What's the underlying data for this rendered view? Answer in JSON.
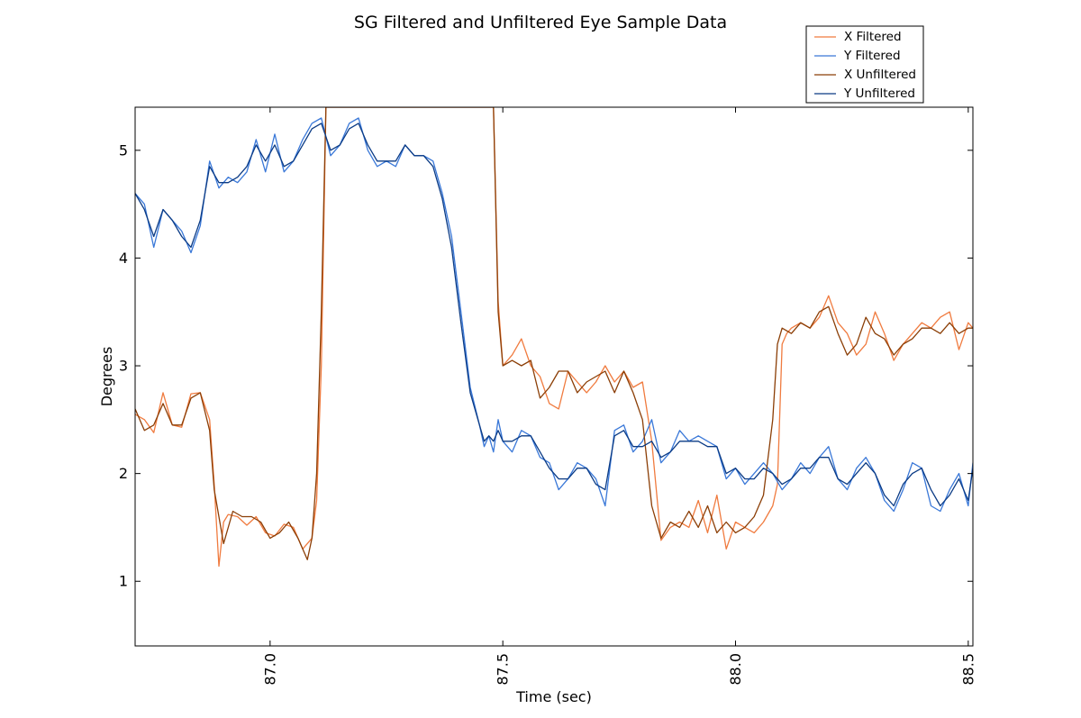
{
  "chart_data": {
    "type": "line",
    "title": "SG Filtered and Unfiltered Eye Sample Data",
    "xlabel": "Time (sec)",
    "ylabel": "Degrees",
    "xlim": [
      86.71,
      88.51
    ],
    "ylim": [
      0.4,
      5.4
    ],
    "xticks": [
      87.0,
      87.5,
      88.0,
      88.5
    ],
    "xtick_labels": [
      "87.0",
      "87.5",
      "88.0",
      "88.5"
    ],
    "yticks": [
      1,
      2,
      3,
      4,
      5
    ],
    "ytick_labels": [
      "1",
      "2",
      "3",
      "4",
      "5"
    ],
    "grid": false,
    "legend_placement": "top-right",
    "series": [
      {
        "name": "X Filtered",
        "color": "#f07b3f",
        "x": [
          86.71,
          86.73,
          86.75,
          86.77,
          86.79,
          86.81,
          86.83,
          86.85,
          86.87,
          86.88,
          86.89,
          86.9,
          86.91,
          86.93,
          86.95,
          86.97,
          86.99,
          87.01,
          87.03,
          87.05,
          87.07,
          87.09,
          87.1,
          87.11,
          87.12,
          87.13,
          87.14,
          87.44,
          87.46,
          87.47,
          87.48,
          87.49,
          87.5,
          87.52,
          87.54,
          87.56,
          87.58,
          87.6,
          87.62,
          87.64,
          87.66,
          87.68,
          87.7,
          87.72,
          87.74,
          87.76,
          87.78,
          87.8,
          87.82,
          87.84,
          87.86,
          87.88,
          87.9,
          87.92,
          87.94,
          87.96,
          87.98,
          88.0,
          88.02,
          88.04,
          88.06,
          88.08,
          88.09,
          88.1,
          88.11,
          88.12,
          88.14,
          88.16,
          88.18,
          88.2,
          88.22,
          88.24,
          88.26,
          88.28,
          88.3,
          88.32,
          88.34,
          88.36,
          88.38,
          88.4,
          88.42,
          88.44,
          88.46,
          88.48,
          88.5,
          88.51
        ],
        "y": [
          2.55,
          2.5,
          2.38,
          2.75,
          2.45,
          2.43,
          2.74,
          2.75,
          2.5,
          1.9,
          1.14,
          1.55,
          1.62,
          1.6,
          1.52,
          1.6,
          1.45,
          1.42,
          1.53,
          1.5,
          1.3,
          1.4,
          1.75,
          3.0,
          5.4,
          5.4,
          5.4,
          5.4,
          5.4,
          5.4,
          5.4,
          3.6,
          3.0,
          3.1,
          3.25,
          3.0,
          2.9,
          2.65,
          2.6,
          2.95,
          2.85,
          2.75,
          2.85,
          3.0,
          2.85,
          2.95,
          2.8,
          2.85,
          2.3,
          1.38,
          1.5,
          1.55,
          1.5,
          1.75,
          1.45,
          1.8,
          1.3,
          1.55,
          1.5,
          1.45,
          1.55,
          1.7,
          1.9,
          3.2,
          3.3,
          3.35,
          3.4,
          3.35,
          3.45,
          3.65,
          3.4,
          3.3,
          3.1,
          3.2,
          3.5,
          3.3,
          3.05,
          3.2,
          3.3,
          3.4,
          3.35,
          3.45,
          3.5,
          3.15,
          3.4,
          3.35
        ]
      },
      {
        "name": "Y Filtered",
        "color": "#3a78d8",
        "x": [
          86.71,
          86.73,
          86.75,
          86.77,
          86.79,
          86.81,
          86.83,
          86.85,
          86.87,
          86.89,
          86.91,
          86.93,
          86.95,
          86.97,
          86.99,
          87.01,
          87.03,
          87.05,
          87.07,
          87.09,
          87.11,
          87.13,
          87.15,
          87.17,
          87.19,
          87.21,
          87.23,
          87.25,
          87.27,
          87.29,
          87.31,
          87.33,
          87.35,
          87.37,
          87.39,
          87.41,
          87.43,
          87.45,
          87.46,
          87.47,
          87.48,
          87.49,
          87.5,
          87.52,
          87.54,
          87.56,
          87.58,
          87.6,
          87.62,
          87.64,
          87.66,
          87.68,
          87.7,
          87.72,
          87.74,
          87.76,
          87.78,
          87.8,
          87.82,
          87.84,
          87.86,
          87.88,
          87.9,
          87.92,
          87.94,
          87.96,
          87.98,
          88.0,
          88.02,
          88.04,
          88.06,
          88.08,
          88.1,
          88.12,
          88.14,
          88.16,
          88.18,
          88.2,
          88.22,
          88.24,
          88.26,
          88.28,
          88.3,
          88.32,
          88.34,
          88.36,
          88.38,
          88.4,
          88.42,
          88.44,
          88.46,
          88.48,
          88.5,
          88.51
        ],
        "y": [
          4.6,
          4.5,
          4.1,
          4.45,
          4.35,
          4.25,
          4.05,
          4.3,
          4.9,
          4.65,
          4.75,
          4.7,
          4.8,
          5.1,
          4.8,
          5.15,
          4.8,
          4.9,
          5.1,
          5.25,
          5.3,
          4.95,
          5.05,
          5.25,
          5.3,
          5.0,
          4.85,
          4.9,
          4.85,
          5.05,
          4.95,
          4.95,
          4.9,
          4.6,
          4.2,
          3.5,
          2.8,
          2.45,
          2.25,
          2.35,
          2.2,
          2.5,
          2.3,
          2.2,
          2.4,
          2.35,
          2.15,
          2.1,
          1.85,
          1.95,
          2.1,
          2.05,
          1.95,
          1.7,
          2.4,
          2.45,
          2.2,
          2.3,
          2.5,
          2.1,
          2.2,
          2.4,
          2.3,
          2.35,
          2.3,
          2.25,
          1.95,
          2.05,
          1.9,
          2.0,
          2.1,
          2.0,
          1.85,
          1.95,
          2.1,
          2.0,
          2.15,
          2.25,
          1.95,
          1.85,
          2.05,
          2.15,
          2.0,
          1.75,
          1.65,
          1.85,
          2.1,
          2.05,
          1.7,
          1.65,
          1.85,
          2.0,
          1.7,
          2.1
        ]
      },
      {
        "name": "X Unfiltered",
        "color": "#8b3e06",
        "x": [
          86.71,
          86.73,
          86.75,
          86.77,
          86.79,
          86.81,
          86.83,
          86.85,
          86.87,
          86.88,
          86.9,
          86.92,
          86.94,
          86.96,
          86.98,
          87.0,
          87.02,
          87.04,
          87.06,
          87.08,
          87.09,
          87.1,
          87.11,
          87.12,
          87.13,
          87.14,
          87.44,
          87.46,
          87.47,
          87.48,
          87.49,
          87.5,
          87.52,
          87.54,
          87.56,
          87.58,
          87.6,
          87.62,
          87.64,
          87.66,
          87.68,
          87.7,
          87.72,
          87.74,
          87.76,
          87.78,
          87.8,
          87.82,
          87.84,
          87.86,
          87.88,
          87.9,
          87.92,
          87.94,
          87.96,
          87.98,
          88.0,
          88.02,
          88.04,
          88.06,
          88.08,
          88.09,
          88.1,
          88.12,
          88.14,
          88.16,
          88.18,
          88.2,
          88.22,
          88.24,
          88.26,
          88.28,
          88.3,
          88.32,
          88.34,
          88.36,
          88.38,
          88.4,
          88.42,
          88.44,
          88.46,
          88.48,
          88.5,
          88.51
        ],
        "y": [
          2.6,
          2.4,
          2.45,
          2.65,
          2.45,
          2.45,
          2.7,
          2.75,
          2.4,
          1.85,
          1.35,
          1.65,
          1.6,
          1.6,
          1.55,
          1.4,
          1.45,
          1.55,
          1.4,
          1.2,
          1.4,
          2.0,
          3.5,
          5.4,
          5.4,
          5.4,
          5.4,
          5.4,
          5.4,
          5.4,
          3.5,
          3.0,
          3.05,
          3.0,
          3.05,
          2.7,
          2.8,
          2.95,
          2.95,
          2.75,
          2.85,
          2.9,
          2.95,
          2.75,
          2.95,
          2.75,
          2.5,
          1.7,
          1.4,
          1.55,
          1.5,
          1.65,
          1.5,
          1.7,
          1.45,
          1.55,
          1.45,
          1.5,
          1.6,
          1.8,
          2.5,
          3.2,
          3.35,
          3.3,
          3.4,
          3.35,
          3.5,
          3.55,
          3.3,
          3.1,
          3.2,
          3.45,
          3.3,
          3.25,
          3.1,
          3.2,
          3.25,
          3.35,
          3.35,
          3.3,
          3.4,
          3.3,
          3.35,
          3.35
        ]
      },
      {
        "name": "Y Unfiltered",
        "color": "#0b3b85",
        "x": [
          86.71,
          86.73,
          86.75,
          86.77,
          86.79,
          86.81,
          86.83,
          86.85,
          86.87,
          86.89,
          86.91,
          86.93,
          86.95,
          86.97,
          86.99,
          87.01,
          87.03,
          87.05,
          87.07,
          87.09,
          87.11,
          87.13,
          87.15,
          87.17,
          87.19,
          87.21,
          87.23,
          87.25,
          87.27,
          87.29,
          87.31,
          87.33,
          87.35,
          87.37,
          87.39,
          87.41,
          87.43,
          87.45,
          87.46,
          87.47,
          87.48,
          87.49,
          87.5,
          87.52,
          87.54,
          87.56,
          87.58,
          87.6,
          87.62,
          87.64,
          87.66,
          87.68,
          87.7,
          87.72,
          87.74,
          87.76,
          87.78,
          87.8,
          87.82,
          87.84,
          87.86,
          87.88,
          87.9,
          87.92,
          87.94,
          87.96,
          87.98,
          88.0,
          88.02,
          88.04,
          88.06,
          88.08,
          88.1,
          88.12,
          88.14,
          88.16,
          88.18,
          88.2,
          88.22,
          88.24,
          88.26,
          88.28,
          88.3,
          88.32,
          88.34,
          88.36,
          88.38,
          88.4,
          88.42,
          88.44,
          88.46,
          88.48,
          88.5,
          88.51
        ],
        "y": [
          4.6,
          4.45,
          4.2,
          4.45,
          4.35,
          4.2,
          4.1,
          4.35,
          4.85,
          4.7,
          4.7,
          4.75,
          4.85,
          5.05,
          4.9,
          5.05,
          4.85,
          4.9,
          5.05,
          5.2,
          5.25,
          5.0,
          5.05,
          5.2,
          5.25,
          5.05,
          4.9,
          4.9,
          4.9,
          5.05,
          4.95,
          4.95,
          4.85,
          4.55,
          4.1,
          3.4,
          2.75,
          2.45,
          2.3,
          2.35,
          2.3,
          2.4,
          2.3,
          2.3,
          2.35,
          2.35,
          2.2,
          2.05,
          1.95,
          1.95,
          2.05,
          2.05,
          1.9,
          1.85,
          2.35,
          2.4,
          2.25,
          2.25,
          2.3,
          2.15,
          2.2,
          2.3,
          2.3,
          2.3,
          2.25,
          2.25,
          2.0,
          2.05,
          1.95,
          1.95,
          2.05,
          2.0,
          1.9,
          1.95,
          2.05,
          2.05,
          2.15,
          2.15,
          1.95,
          1.9,
          2.0,
          2.1,
          2.0,
          1.8,
          1.7,
          1.9,
          2.0,
          2.05,
          1.85,
          1.7,
          1.8,
          1.95,
          1.75,
          2.05
        ]
      }
    ]
  }
}
